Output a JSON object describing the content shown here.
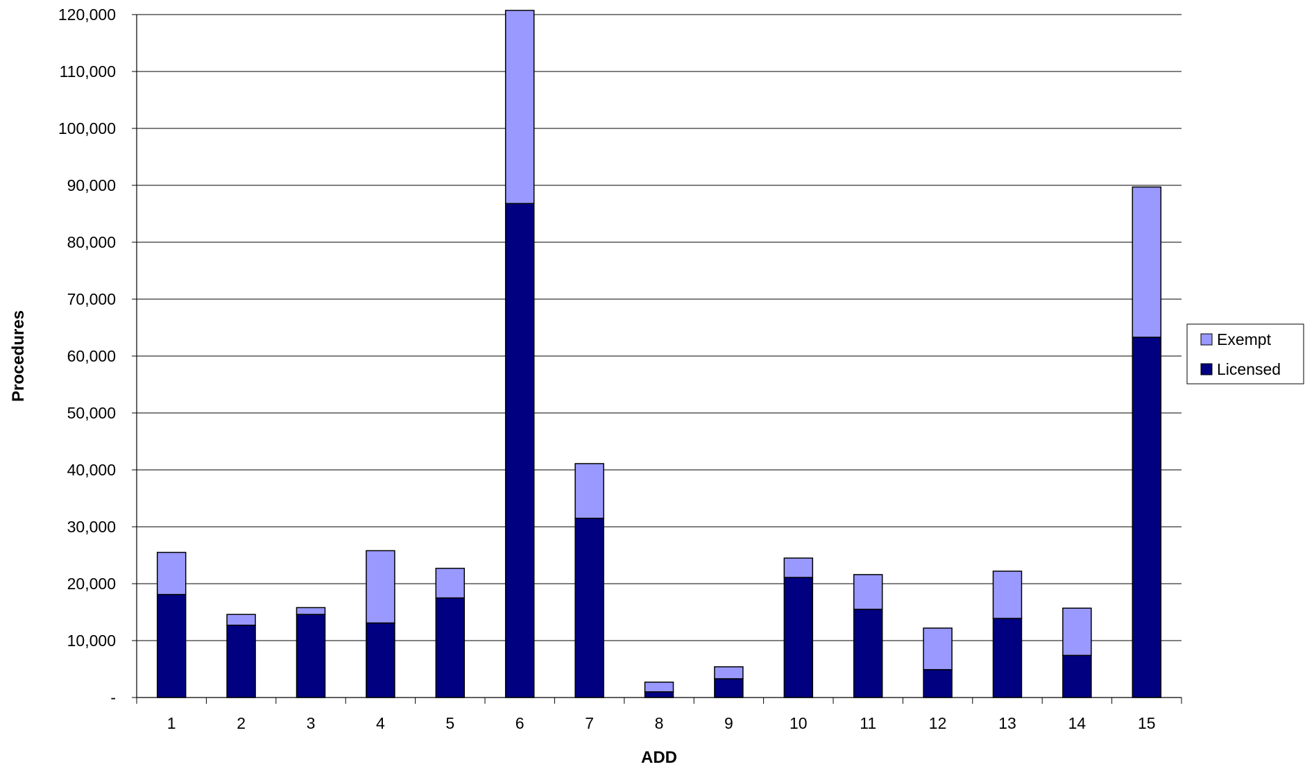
{
  "chart_data": {
    "type": "bar",
    "stacked": true,
    "xlabel": "ADD",
    "ylabel": "Procedures",
    "ylim": [
      0,
      120000
    ],
    "grid": true,
    "legend_position": "right",
    "categories": [
      "1",
      "2",
      "3",
      "4",
      "5",
      "6",
      "7",
      "8",
      "9",
      "10",
      "11",
      "12",
      "13",
      "14",
      "15"
    ],
    "y_ticks": [
      0,
      10000,
      20000,
      30000,
      40000,
      50000,
      60000,
      70000,
      80000,
      90000,
      100000,
      110000,
      120000
    ],
    "y_tick_labels": [
      "-",
      "10,000",
      "20,000",
      "30,000",
      "40,000",
      "50,000",
      "60,000",
      "70,000",
      "80,000",
      "90,000",
      "100,000",
      "110,000",
      "120,000"
    ],
    "series": [
      {
        "name": "Licensed",
        "color": "#000080",
        "values": [
          18100,
          12700,
          14600,
          13100,
          17500,
          86800,
          31500,
          1000,
          3300,
          21100,
          15500,
          4900,
          13900,
          7400,
          63300
        ]
      },
      {
        "name": "Exempt",
        "color": "#9999ff",
        "values": [
          7400,
          1900,
          1200,
          12700,
          5200,
          34400,
          9600,
          1700,
          2100,
          3400,
          6100,
          7300,
          8300,
          8300,
          26400
        ]
      }
    ],
    "legend_order": [
      "Exempt",
      "Licensed"
    ]
  }
}
